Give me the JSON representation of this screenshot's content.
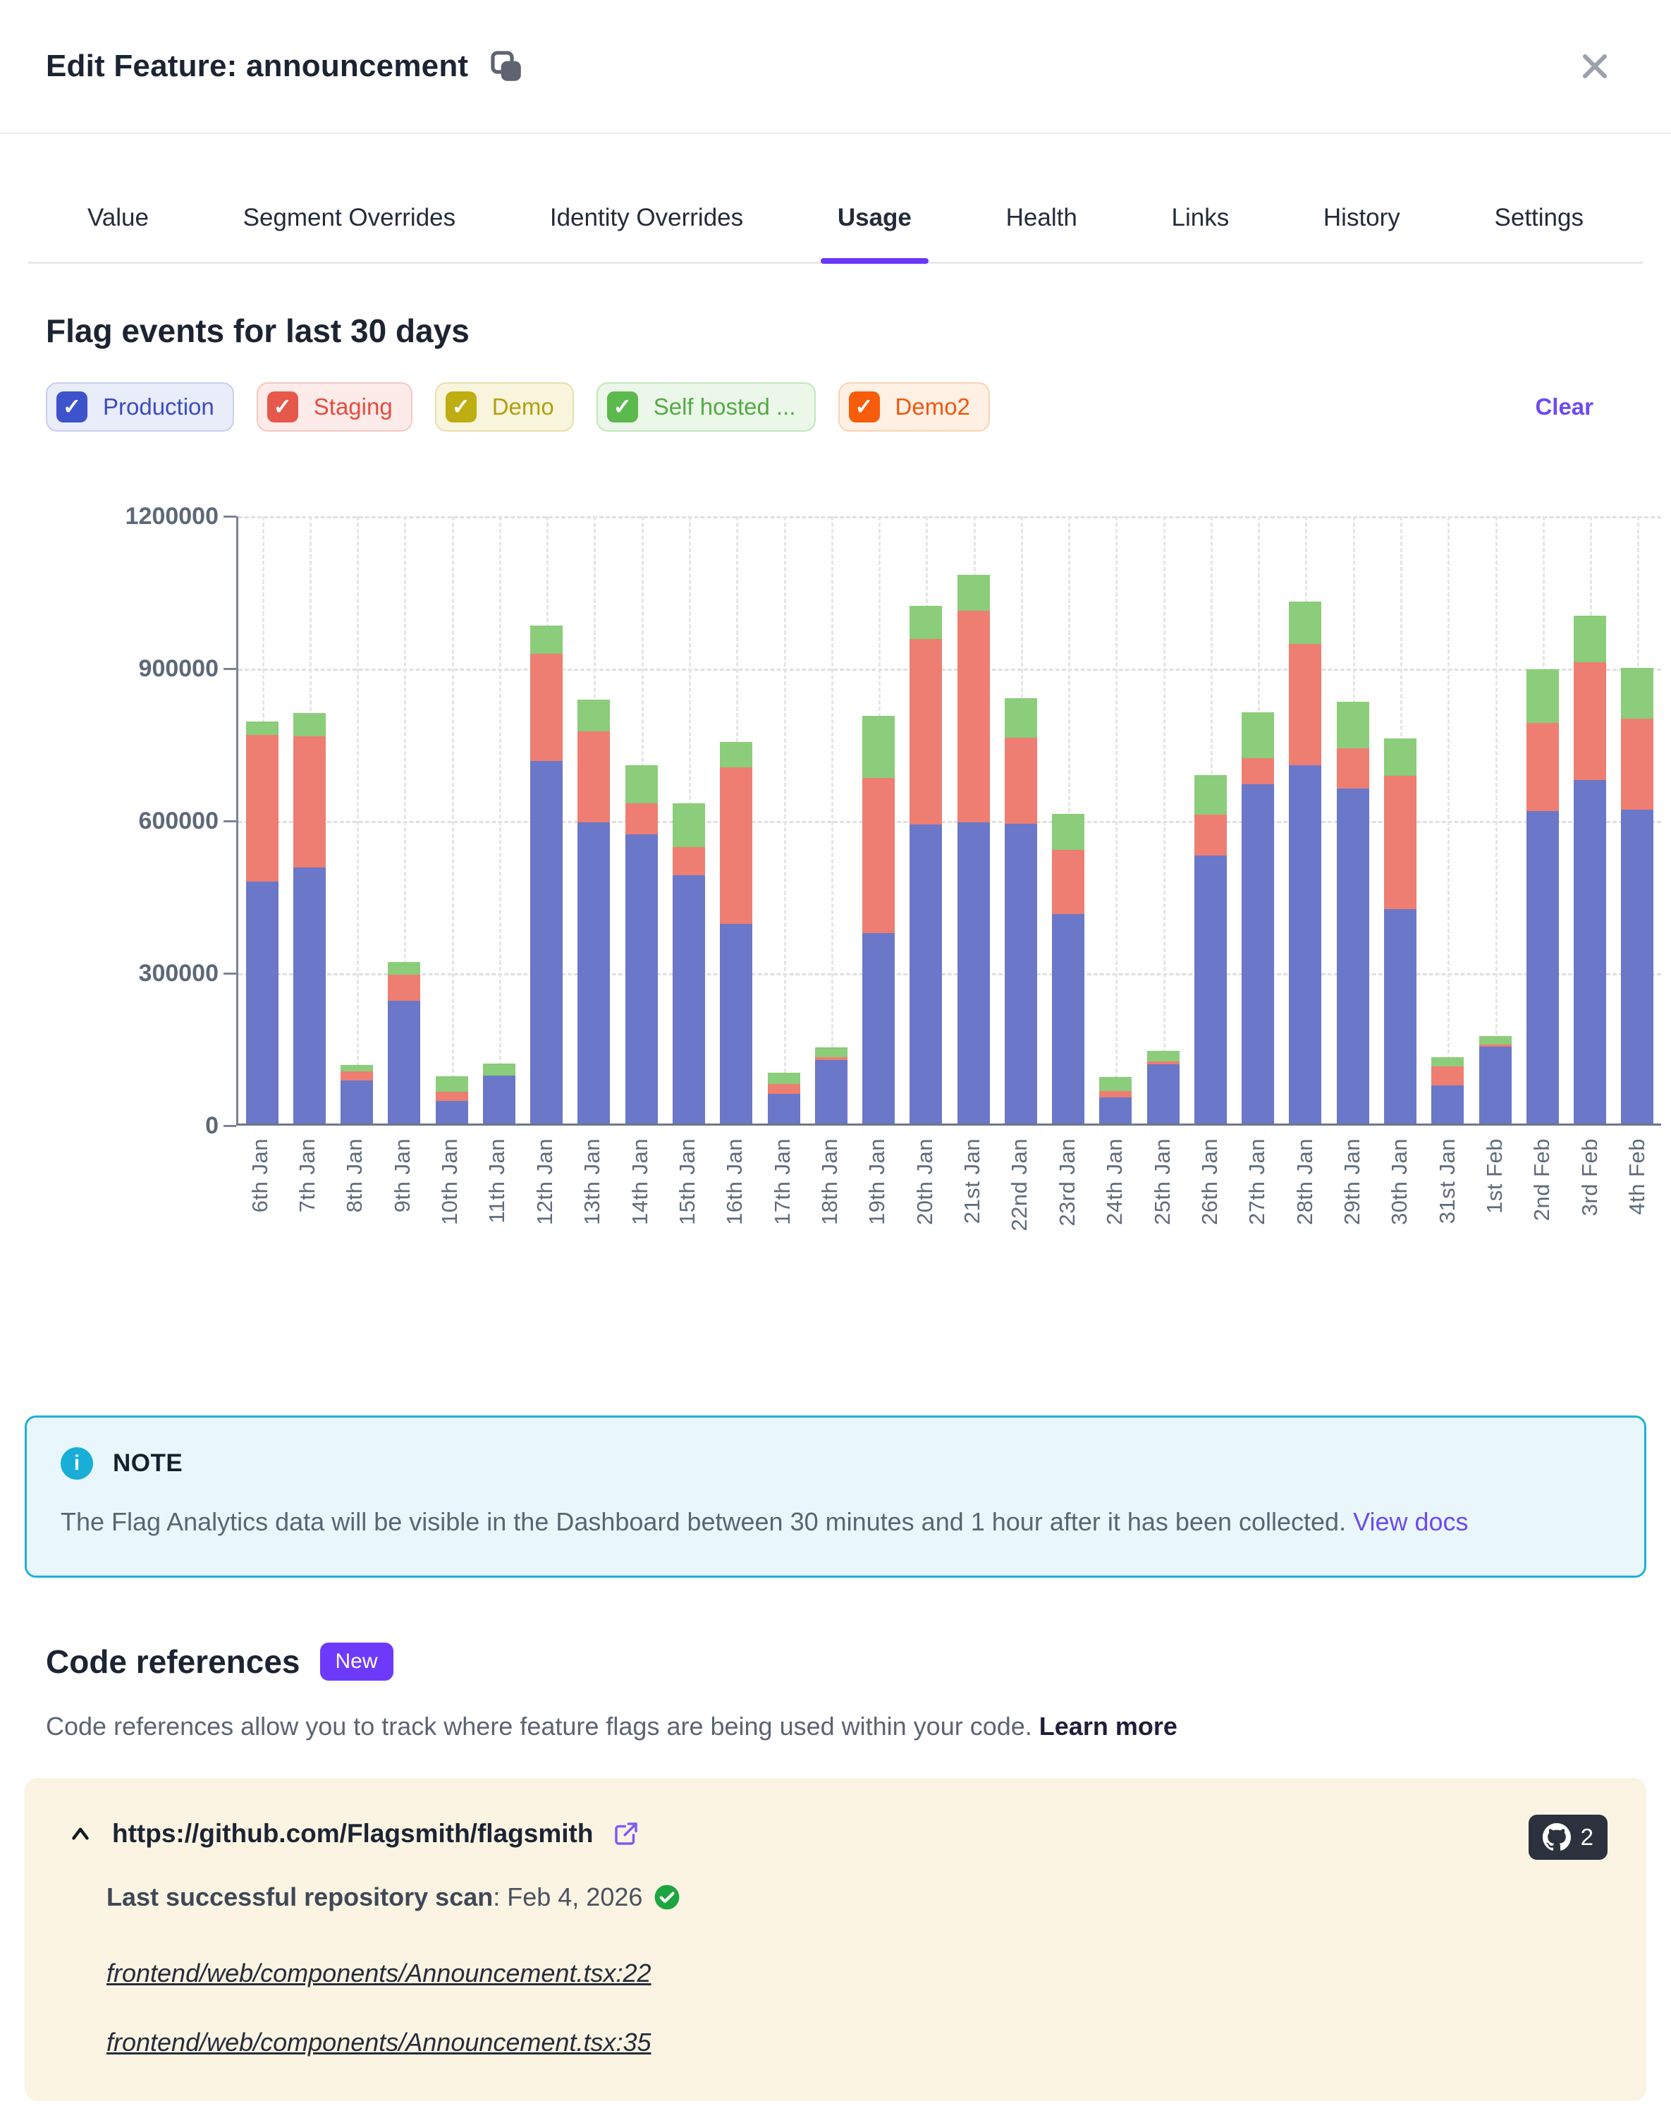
{
  "modal": {
    "title": "Edit Feature: announcement"
  },
  "tabs": [
    {
      "label": "Value",
      "active": false
    },
    {
      "label": "Segment Overrides",
      "active": false
    },
    {
      "label": "Identity Overrides",
      "active": false
    },
    {
      "label": "Usage",
      "active": true
    },
    {
      "label": "Health",
      "active": false
    },
    {
      "label": "Links",
      "active": false
    },
    {
      "label": "History",
      "active": false
    },
    {
      "label": "Settings",
      "active": false
    }
  ],
  "usage": {
    "section_title": "Flag events for last 30 days",
    "clear_label": "Clear",
    "environments": [
      {
        "label": "Production",
        "checked": true,
        "check_color": "#3c53cb",
        "bg": "#e9ecf9",
        "border": "#c9cfee",
        "text_color": "#3b4cc0"
      },
      {
        "label": "Staging",
        "checked": true,
        "check_color": "#e6584a",
        "bg": "#fcebe9",
        "border": "#f5c8c2",
        "text_color": "#e74c3e"
      },
      {
        "label": "Demo",
        "checked": true,
        "check_color": "#bfae12",
        "bg": "#f9f4dc",
        "border": "#e7dfae",
        "text_color": "#b0a010"
      },
      {
        "label": "Self hosted ...",
        "checked": true,
        "check_color": "#5cb94e",
        "bg": "#ebf7e8",
        "border": "#c4e5bc",
        "text_color": "#54a945"
      },
      {
        "label": "Demo2",
        "checked": true,
        "check_color": "#f65c0a",
        "bg": "#fff0e4",
        "border": "#fdd2b2",
        "text_color": "#f2570f"
      }
    ]
  },
  "chart_data": {
    "type": "bar",
    "stacked": true,
    "title": "Flag events for last 30 days",
    "xlabel": "",
    "ylabel": "",
    "ylim": [
      0,
      1200000
    ],
    "y_ticks": [
      1200000,
      900000,
      600000,
      300000,
      0
    ],
    "grid": true,
    "legend_position": "none",
    "categories": [
      "6th Jan",
      "7th Jan",
      "8th Jan",
      "9th Jan",
      "10th Jan",
      "11th Jan",
      "12th Jan",
      "13th Jan",
      "14th Jan",
      "15th Jan",
      "16th Jan",
      "17th Jan",
      "18th Jan",
      "19th Jan",
      "20th Jan",
      "21st Jan",
      "22nd Jan",
      "23rd Jan",
      "24th Jan",
      "25th Jan",
      "26th Jan",
      "27th Jan",
      "28th Jan",
      "29th Jan",
      "30th Jan",
      "31st Jan",
      "1st Feb",
      "2nd Feb",
      "3rd Feb",
      "4th Feb"
    ],
    "series": [
      {
        "name": "Production",
        "color": "#6b77c8",
        "values": [
          476000,
          504000,
          85000,
          242000,
          45000,
          95000,
          714000,
          593000,
          570000,
          489000,
          393000,
          58000,
          125000,
          375000,
          589000,
          593000,
          590000,
          412000,
          52000,
          117000,
          528000,
          668000,
          706000,
          660000,
          422000,
          75000,
          152000,
          616000,
          677000,
          618000
        ]
      },
      {
        "name": "Staging",
        "color": "#ee7e71",
        "values": [
          289000,
          259000,
          18000,
          51000,
          17000,
          0,
          211000,
          179000,
          61000,
          56000,
          308000,
          20000,
          6000,
          305000,
          365000,
          417000,
          170000,
          127000,
          12000,
          6000,
          80000,
          52000,
          239000,
          79000,
          263000,
          37000,
          4000,
          173000,
          231000,
          179000
        ]
      },
      {
        "name": "Self hosted",
        "color": "#8bcd7a",
        "values": [
          27000,
          45000,
          12000,
          25000,
          31000,
          23000,
          55000,
          63000,
          75000,
          86000,
          50000,
          22000,
          19000,
          123000,
          66000,
          70000,
          77000,
          71000,
          28000,
          20000,
          78000,
          90000,
          83000,
          91000,
          73000,
          19000,
          17000,
          106000,
          92000,
          100000
        ]
      }
    ]
  },
  "note": {
    "title": "NOTE",
    "body": "The Flag Analytics data will be visible in the Dashboard between 30 minutes and 1 hour after it has been collected.",
    "link_label": "View docs"
  },
  "code_references": {
    "title": "Code references",
    "badge": "New",
    "description": "Code references allow you to track where feature flags are being used within your code.",
    "learn_more_label": "Learn more",
    "repo": {
      "url": "https://github.com/Flagsmith/flagsmith",
      "count": "2",
      "scan_label": "Last successful repository scan",
      "scan_value": ": Feb 4, 2026",
      "files": [
        "frontend/web/components/Announcement.tsx:22",
        "frontend/web/components/Announcement.tsx:35"
      ]
    }
  }
}
